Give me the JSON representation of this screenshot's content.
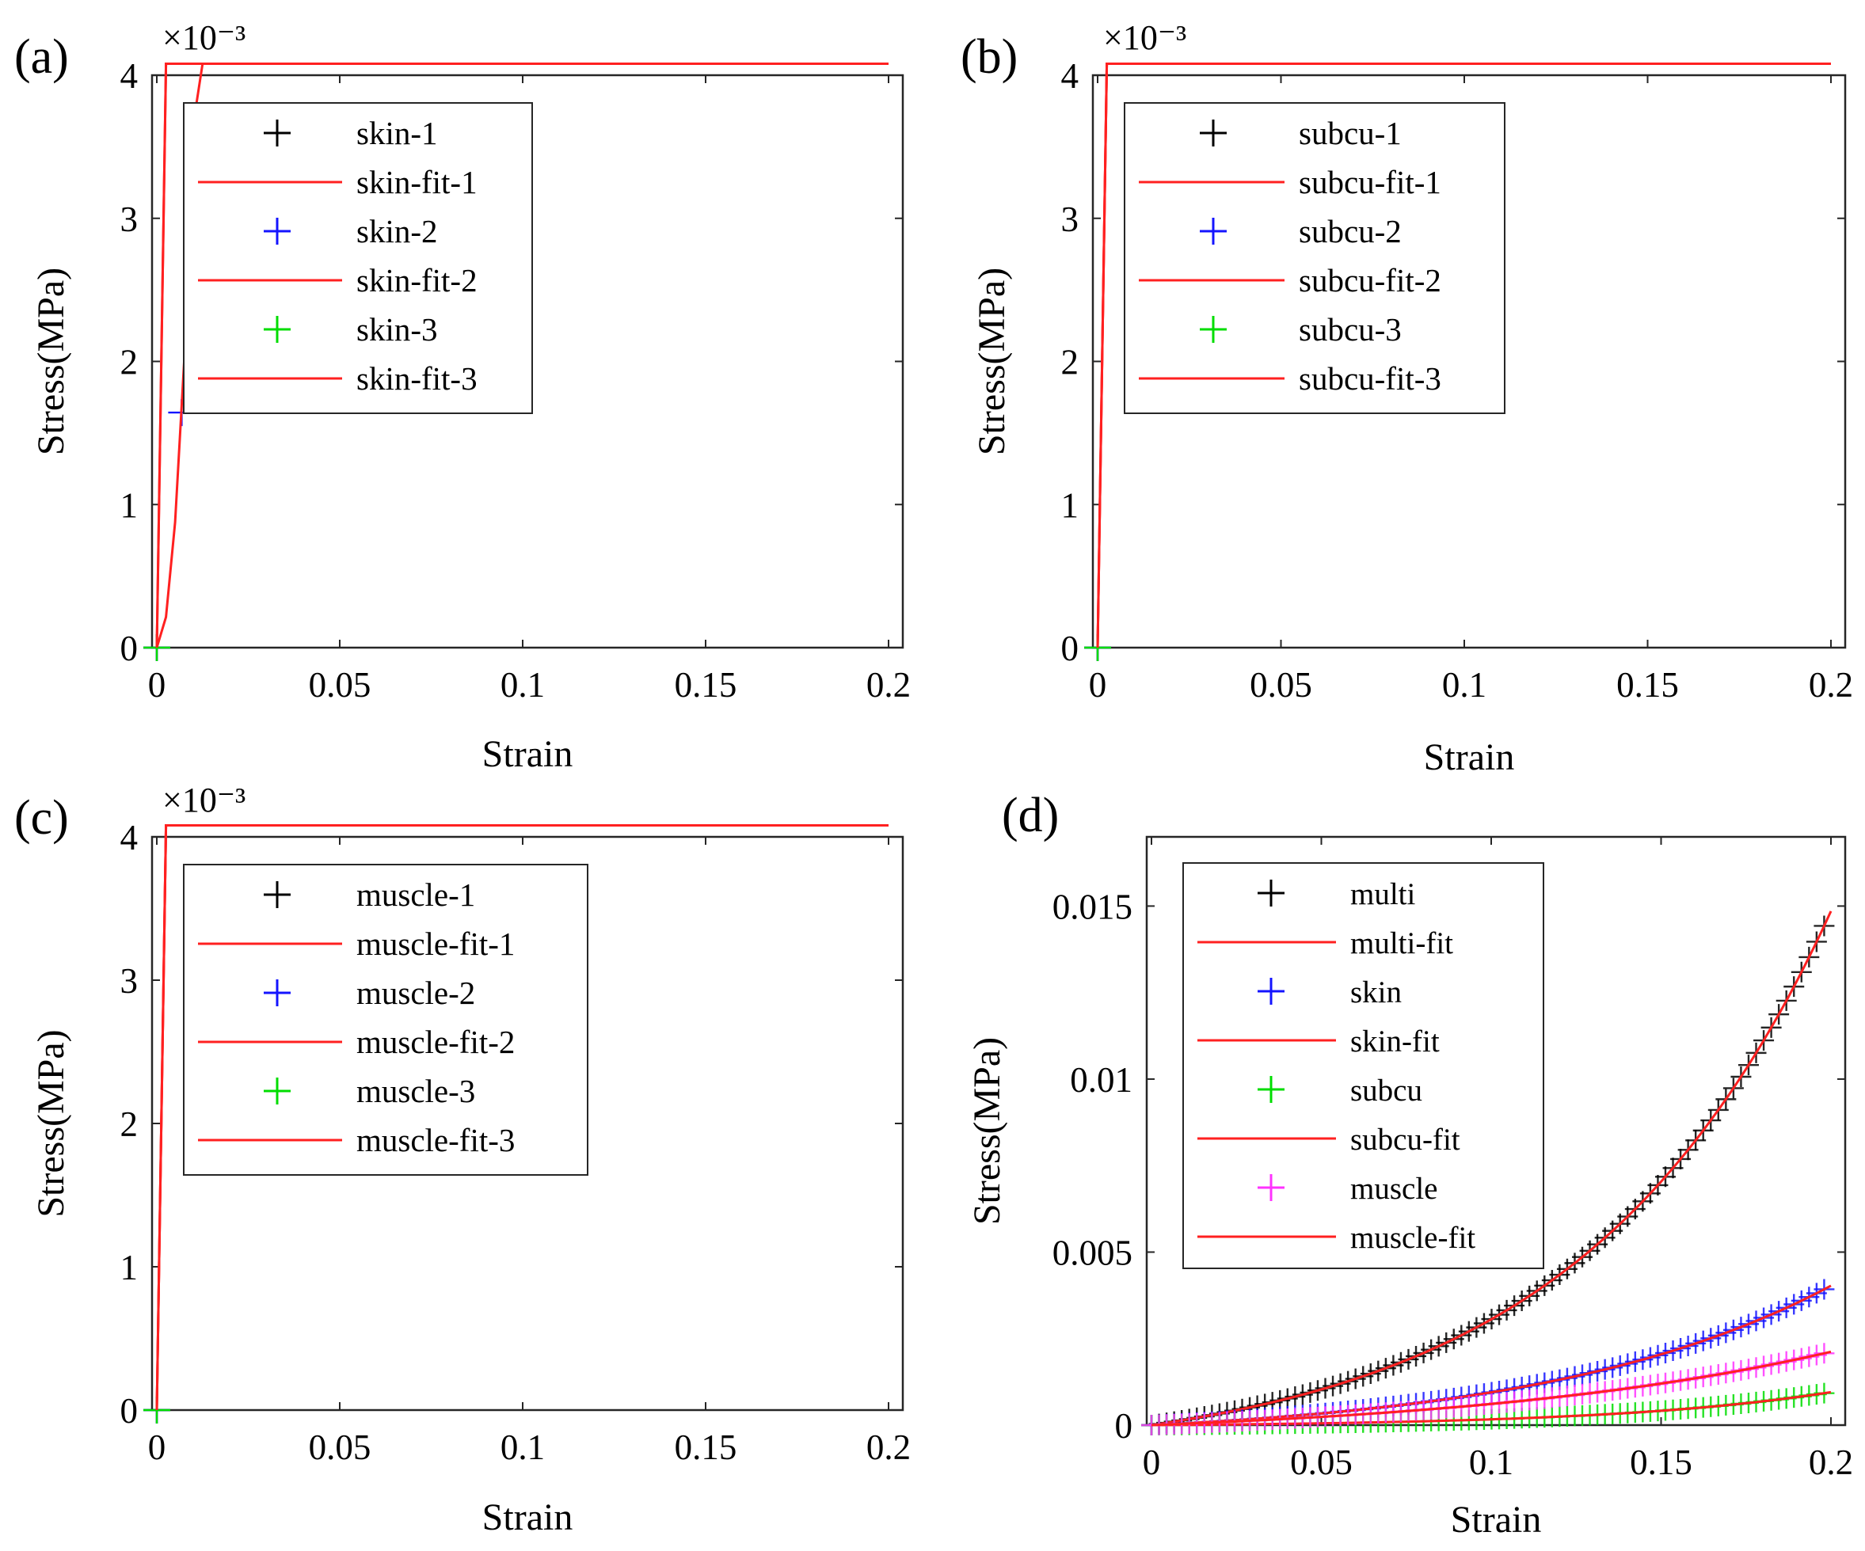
{
  "figure": {
    "panels": [
      "(a)",
      "(b)",
      "(c)",
      "(d)"
    ]
  },
  "colors": {
    "black": "#000000",
    "blue": "#1414ff",
    "green": "#00dd00",
    "magenta": "#ff33ff",
    "fit_red": "#ff2020",
    "axis": "#262626"
  },
  "chart_data": [
    {
      "type": "line",
      "panel_label": "(a)",
      "xlabel": "Strain",
      "ylabel": "Stress(MPa)",
      "y_exponent": "×10⁻³",
      "xlim": [
        0,
        0.2
      ],
      "ylim": [
        0,
        4
      ],
      "xticks": [
        0,
        0.05,
        0.1,
        0.15,
        0.2
      ],
      "xtick_labels": [
        "0",
        "0.05",
        "0.1",
        "0.15",
        "0.2"
      ],
      "yticks": [
        0,
        1,
        2,
        3,
        4
      ],
      "ytick_labels": [
        "0",
        "1",
        "2",
        "3",
        "4"
      ],
      "legend_position": "top-left",
      "series": [
        {
          "name": "skin-1",
          "kind": "markers",
          "color": "black",
          "model": {
            "a": 0.55,
            "b": 0,
            "c": 8
          },
          "x_max": 0.197,
          "n": 25
        },
        {
          "name": "skin-fit-1",
          "kind": "fit",
          "color": "fit_red",
          "model": {
            "a": 0.55,
            "b": 0,
            "c": 8
          },
          "x_max": 0.2
        },
        {
          "name": "skin-2",
          "kind": "markers",
          "color": "blue",
          "model": {
            "a": 0,
            "b": 0.1,
            "c": 25.9
          },
          "x_max": 0.197,
          "n": 30
        },
        {
          "name": "skin-fit-2",
          "kind": "fit",
          "color": "fit_red",
          "model": {
            "a": 0,
            "b": 0.1,
            "c": 25.9
          },
          "x_max": 0.2
        },
        {
          "name": "skin-3",
          "kind": "markers",
          "color": "green",
          "model": {
            "a": 7.6,
            "b": 0,
            "c": 13.7
          },
          "x_max": 0.197,
          "n": 36
        },
        {
          "name": "skin-fit-3",
          "kind": "fit",
          "color": "fit_red",
          "model": {
            "a": 7.6,
            "b": 0,
            "c": 13.7
          },
          "x_max": 0.2
        }
      ]
    },
    {
      "type": "line",
      "panel_label": "(b)",
      "xlabel": "Strain",
      "ylabel": "Stress(MPa)",
      "y_exponent": "×10⁻³",
      "xlim": [
        0,
        0.2
      ],
      "ylim": [
        0,
        4
      ],
      "xticks": [
        0,
        0.05,
        0.1,
        0.15,
        0.2
      ],
      "xtick_labels": [
        "0",
        "0.05",
        "0.1",
        "0.15",
        "0.2"
      ],
      "yticks": [
        0,
        1,
        2,
        3,
        4
      ],
      "ytick_labels": [
        "0",
        "1",
        "2",
        "3",
        "4"
      ],
      "legend_position": "top-left",
      "series": [
        {
          "name": "subcu-1",
          "kind": "markers",
          "color": "black",
          "model": {
            "a": 1.12,
            "b": 0,
            "c": 14.3
          },
          "x_max": 0.197,
          "n": 36
        },
        {
          "name": "subcu-fit-1",
          "kind": "fit",
          "color": "fit_red",
          "model": {
            "a": 1.12,
            "b": 0,
            "c": 14.3
          },
          "x_max": 0.2
        },
        {
          "name": "subcu-2",
          "kind": "markers",
          "color": "blue",
          "model": {
            "a": 0.35,
            "b": 0,
            "c": 11.5
          },
          "x_max": 0.197,
          "n": 36
        },
        {
          "name": "subcu-fit-2",
          "kind": "fit",
          "color": "fit_red",
          "model": {
            "a": 0.35,
            "b": 0,
            "c": 11.5
          },
          "x_max": 0.2
        },
        {
          "name": "subcu-3",
          "kind": "markers",
          "color": "green",
          "model": {
            "a": 0.48,
            "b": 0,
            "c": 11.8
          },
          "x_max": 0.197,
          "n": 36
        },
        {
          "name": "subcu-fit-3",
          "kind": "fit",
          "color": "fit_red",
          "model": {
            "a": 0.48,
            "b": 0,
            "c": 11.8
          },
          "x_max": 0.2
        }
      ]
    },
    {
      "type": "line",
      "panel_label": "(c)",
      "xlabel": "Strain",
      "ylabel": "Stress(MPa)",
      "y_exponent": "×10⁻³",
      "xlim": [
        0,
        0.2
      ],
      "ylim": [
        0,
        4
      ],
      "xticks": [
        0,
        0.05,
        0.1,
        0.15,
        0.2
      ],
      "xtick_labels": [
        "0",
        "0.05",
        "0.1",
        "0.15",
        "0.2"
      ],
      "yticks": [
        0,
        1,
        2,
        3,
        4
      ],
      "ytick_labels": [
        "0",
        "1",
        "2",
        "3",
        "4"
      ],
      "legend_position": "top-left",
      "series": [
        {
          "name": "muscle-1",
          "kind": "markers",
          "color": "black",
          "model": {
            "a": 2.1,
            "b": 0,
            "c": 13.5
          },
          "x_max": 0.197,
          "n": 36
        },
        {
          "name": "muscle-fit-1",
          "kind": "fit",
          "color": "fit_red",
          "model": {
            "a": 2.1,
            "b": 0,
            "c": 13.5
          },
          "x_max": 0.2
        },
        {
          "name": "muscle-2",
          "kind": "markers",
          "color": "blue",
          "model": {
            "a": 0.65,
            "b": 0,
            "c": 20.5
          },
          "x_max": 0.197,
          "n": 36
        },
        {
          "name": "muscle-fit-2",
          "kind": "fit",
          "color": "fit_red",
          "model": {
            "a": 0.65,
            "b": 0,
            "c": 20.5
          },
          "x_max": 0.2
        },
        {
          "name": "muscle-3",
          "kind": "markers",
          "color": "green",
          "model": {
            "a": 1.35,
            "b": 0,
            "c": 16.5
          },
          "x_max": 0.197,
          "n": 36
        },
        {
          "name": "muscle-fit-3",
          "kind": "fit",
          "color": "fit_red",
          "model": {
            "a": 1.35,
            "b": 0,
            "c": 16.5
          },
          "x_max": 0.2
        }
      ]
    },
    {
      "type": "line",
      "panel_label": "(d)",
      "xlabel": "Strain",
      "ylabel": "Stress(MPa)",
      "y_exponent": "",
      "xlim": [
        0,
        0.2
      ],
      "ylim": [
        0,
        0.017
      ],
      "xticks": [
        0,
        0.05,
        0.1,
        0.15,
        0.2
      ],
      "xtick_labels": [
        "0",
        "0.05",
        "0.1",
        "0.15",
        "0.2"
      ],
      "yticks": [
        0,
        0.005,
        0.01,
        0.015
      ],
      "ytick_labels": [
        "0",
        "0.005",
        "0.01",
        "0.015"
      ],
      "legend_position": "top-left",
      "series": [
        {
          "name": "multi",
          "kind": "markers",
          "color": "black",
          "model": {
            "a": 0.00107,
            "b": 0,
            "c": 13.5
          },
          "x_max": 0.198,
          "n": 90
        },
        {
          "name": "multi-fit",
          "kind": "fit",
          "color": "fit_red",
          "model": {
            "a": 0.00107,
            "b": 0,
            "c": 13.5
          },
          "x_max": 0.2
        },
        {
          "name": "skin",
          "kind": "markers",
          "color": "blue",
          "model": {
            "a": 0.00042,
            "b": 0,
            "c": 11.8
          },
          "x_max": 0.198,
          "n": 90
        },
        {
          "name": "skin-fit",
          "kind": "fit",
          "color": "fit_red",
          "model": {
            "a": 0.00042,
            "b": 0,
            "c": 11.8
          },
          "x_max": 0.2
        },
        {
          "name": "subcu",
          "kind": "markers",
          "color": "green",
          "model": {
            "a": 4.5e-05,
            "b": 0,
            "c": 15.5
          },
          "x_max": 0.198,
          "n": 90
        },
        {
          "name": "subcu-fit",
          "kind": "fit",
          "color": "fit_red",
          "model": {
            "a": 4.5e-05,
            "b": 0,
            "c": 15.5
          },
          "x_max": 0.2
        },
        {
          "name": "muscle",
          "kind": "markers",
          "color": "magenta",
          "model": {
            "a": 0.00042,
            "b": 0,
            "c": 9
          },
          "x_max": 0.198,
          "n": 90
        },
        {
          "name": "muscle-fit",
          "kind": "fit",
          "color": "fit_red",
          "model": {
            "a": 0.00042,
            "b": 0,
            "c": 9
          },
          "x_max": 0.2
        }
      ]
    }
  ]
}
